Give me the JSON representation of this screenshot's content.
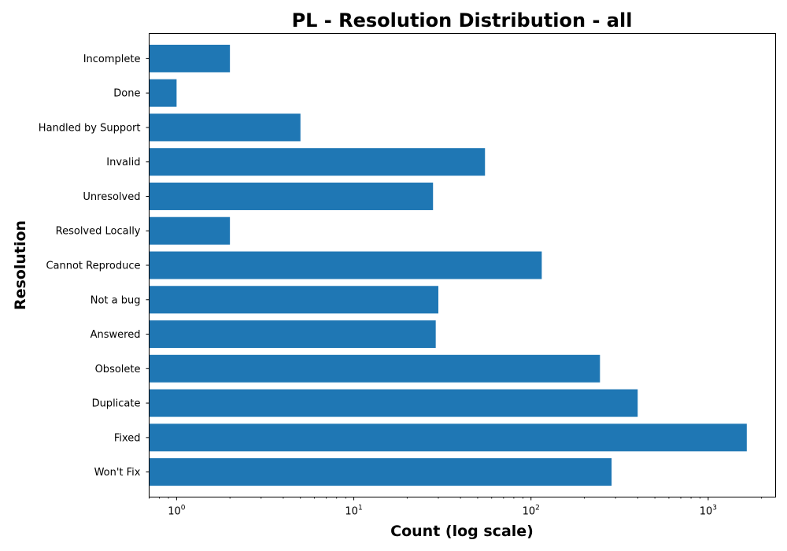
{
  "chart_data": {
    "type": "bar",
    "orientation": "horizontal",
    "title": "PL - Resolution Distribution - all",
    "xlabel": "Count (log scale)",
    "ylabel": "Resolution",
    "xscale": "log",
    "xlim": [
      0.7,
      2400
    ],
    "xticks": [
      {
        "base": "10",
        "exp": "0",
        "value": 1
      },
      {
        "base": "10",
        "exp": "1",
        "value": 10
      },
      {
        "base": "10",
        "exp": "2",
        "value": 100
      },
      {
        "base": "10",
        "exp": "3",
        "value": 1000
      }
    ],
    "categories": [
      "Won't Fix",
      "Fixed",
      "Duplicate",
      "Obsolete",
      "Answered",
      "Not a bug",
      "Cannot Reproduce",
      "Resolved Locally",
      "Unresolved",
      "Invalid",
      "Handled by Support",
      "Done",
      "Incomplete"
    ],
    "values": [
      285,
      1650,
      400,
      245,
      29,
      30,
      115,
      2,
      28,
      55,
      5,
      1,
      2
    ],
    "color": "#1f77b4",
    "grid": false
  }
}
